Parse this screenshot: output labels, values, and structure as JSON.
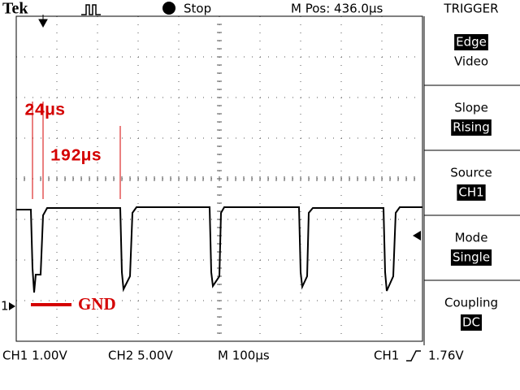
{
  "header": {
    "brand": "Tek",
    "status": "Stop",
    "position": "M Pos: 436.0µs",
    "menu_title": "TRIGGER"
  },
  "menu": [
    {
      "top": "Edge",
      "bottom": "Video",
      "highlight": "top"
    },
    {
      "top": "Slope",
      "bottom": "Rising",
      "highlight": "bottom"
    },
    {
      "top": "Source",
      "bottom": "CH1",
      "highlight": "bottom"
    },
    {
      "top": "Mode",
      "bottom": "Single",
      "highlight": "bottom"
    },
    {
      "top": "Coupling",
      "bottom": "DC",
      "highlight": "bottom"
    }
  ],
  "annotations": {
    "pulse_width": "24µs",
    "period_gap": "192µs",
    "ground": "GND"
  },
  "channel_marker": "1",
  "footer": {
    "ch1": "CH1 1.00V",
    "ch2": "CH2 5.00V",
    "timebase": "M 100µs",
    "trigger_source": "CH1",
    "trigger_level": "1.76V"
  }
}
